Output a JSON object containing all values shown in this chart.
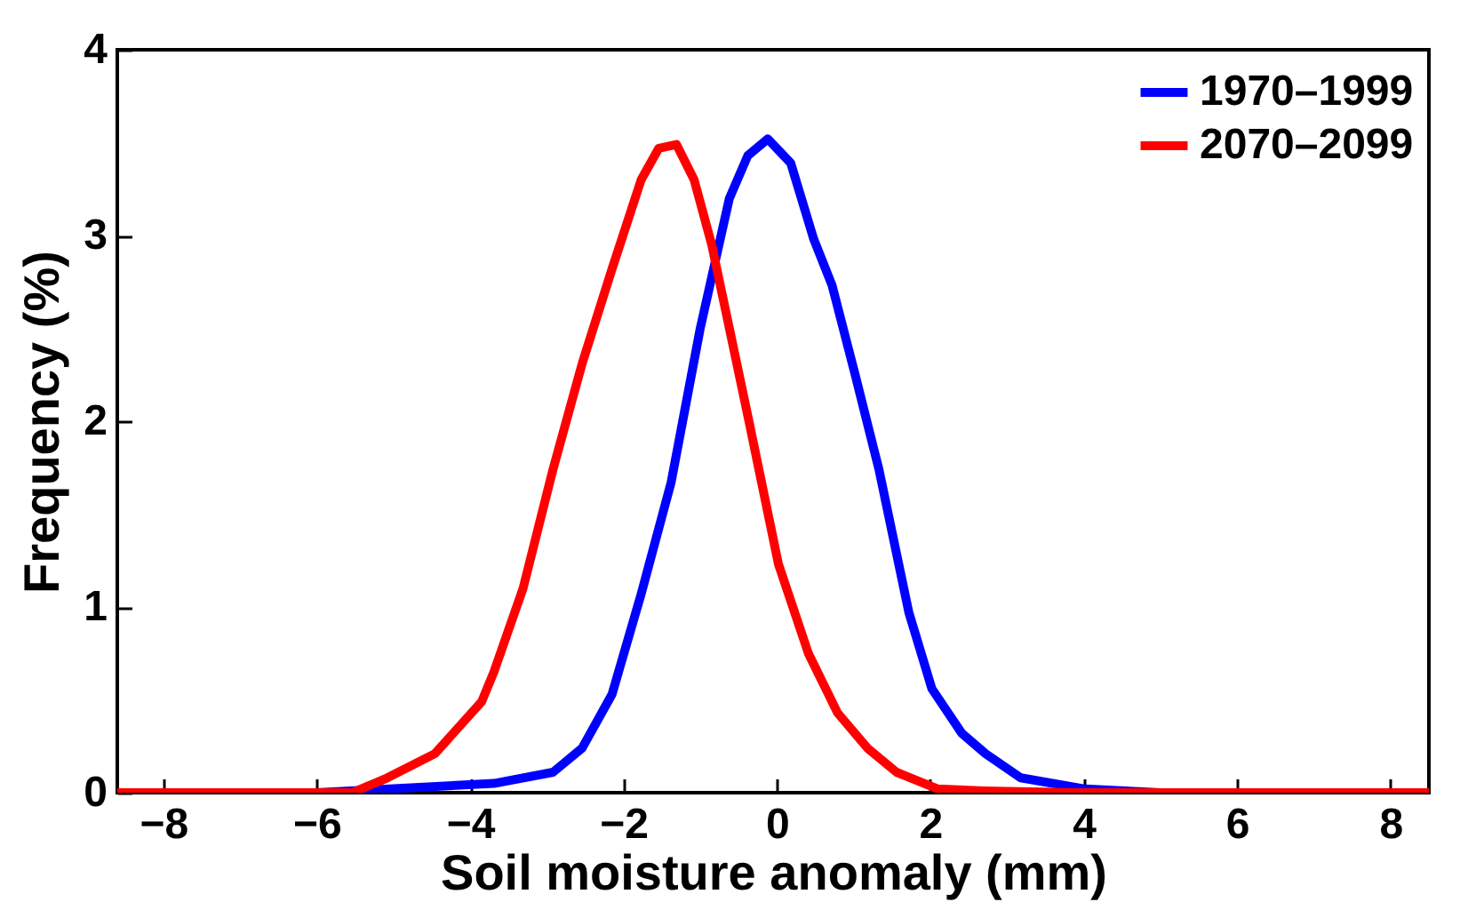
{
  "chart_data": {
    "type": "line",
    "xlabel": "Soil moisture anomaly (mm)",
    "ylabel": "Frequency (%)",
    "xlim": [
      -8.6,
      8.5
    ],
    "ylim": [
      0,
      4
    ],
    "xticks": [
      -8,
      -6,
      -4,
      -2,
      0,
      2,
      4,
      6,
      8
    ],
    "yticks": [
      0,
      1,
      2,
      3,
      4
    ],
    "grid": false,
    "legend": "top right",
    "line_style": "solid",
    "marker": "none",
    "series": [
      {
        "name": "1970–1999",
        "color": "#0000ff",
        "x": [
          -8.6,
          -6,
          -3.69,
          -2.92,
          -2.54,
          -2.15,
          -1.77,
          -1.38,
          -1.0,
          -0.62,
          -0.38,
          -0.12,
          0.18,
          0.48,
          0.72,
          1.02,
          1.33,
          1.72,
          2.02,
          2.41,
          2.72,
          3.18,
          4.02,
          5.0,
          8.5
        ],
        "values": [
          0,
          0,
          0.05,
          0.11,
          0.24,
          0.53,
          1.07,
          1.67,
          2.5,
          3.2,
          3.43,
          3.52,
          3.39,
          2.98,
          2.73,
          2.25,
          1.74,
          0.97,
          0.56,
          0.32,
          0.21,
          0.08,
          0.02,
          0,
          0
        ]
      },
      {
        "name": "2070–2099",
        "color": "#ff0000",
        "x": [
          -8.6,
          -5.54,
          -5.08,
          -4.46,
          -3.85,
          -3.69,
          -3.31,
          -2.92,
          -2.54,
          -2.15,
          -1.77,
          -1.54,
          -1.31,
          -1.08,
          -0.85,
          -0.62,
          -0.36,
          0.02,
          0.41,
          0.79,
          1.18,
          1.56,
          2.1,
          2.7,
          3.9,
          8.5
        ],
        "values": [
          0,
          0,
          0.08,
          0.21,
          0.49,
          0.65,
          1.1,
          1.74,
          2.31,
          2.82,
          3.3,
          3.47,
          3.49,
          3.3,
          2.95,
          2.5,
          1.99,
          1.23,
          0.75,
          0.43,
          0.24,
          0.11,
          0.02,
          0.01,
          0,
          0
        ]
      }
    ]
  }
}
